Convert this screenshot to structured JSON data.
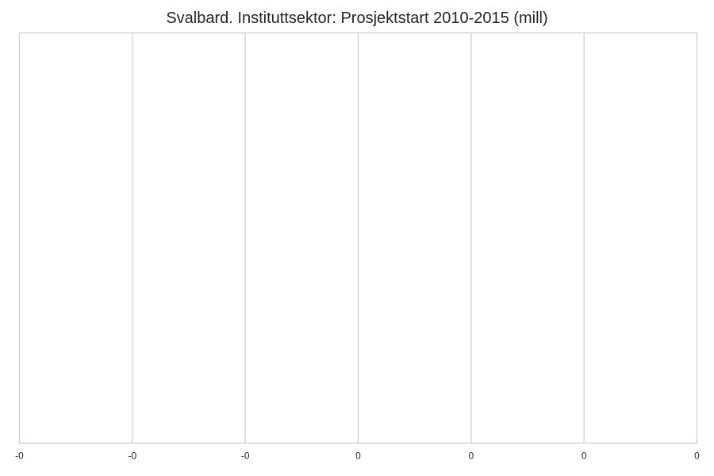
{
  "chart_data": {
    "type": "bar",
    "orientation": "horizontal",
    "title": "Svalbard. Instituttsektor: Prosjektstart 2010-2015 (mill)",
    "xlabel": "",
    "ylabel": "",
    "categories": [],
    "values": [],
    "x_ticks": [
      "-0",
      "-0",
      "-0",
      "0",
      "0",
      "0",
      "0"
    ],
    "grid": true,
    "colors": {
      "grid": "#cccccc",
      "axis": "#cccccc",
      "text": "#262626"
    }
  }
}
